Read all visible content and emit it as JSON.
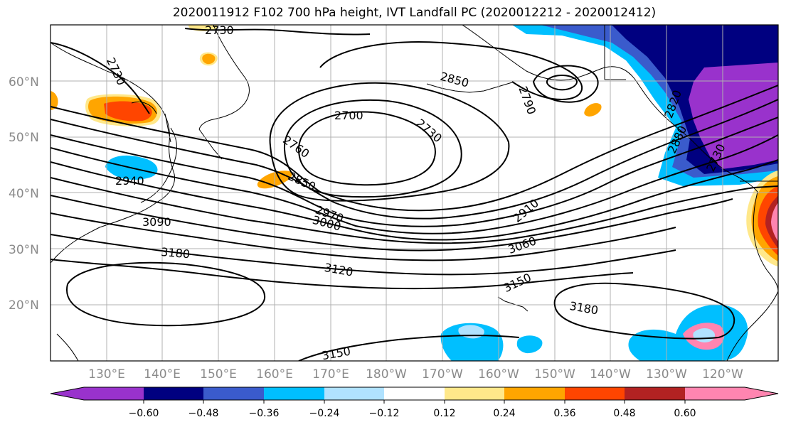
{
  "title": "2020011912 F102 700 hPa height, IVT Landfall PC (2020012212 - 2020012412)",
  "map": {
    "lat_ticks": [
      "60°N",
      "50°N",
      "40°N",
      "30°N",
      "20°N"
    ],
    "lon_ticks": [
      "130°E",
      "140°E",
      "150°E",
      "160°E",
      "170°E",
      "180°W",
      "170°W",
      "160°W",
      "150°W",
      "140°W",
      "130°W",
      "120°W"
    ],
    "contour_labels": [
      "2730",
      "2730",
      "2850",
      "2700",
      "2730",
      "2760",
      "2850",
      "2940",
      "2910",
      "2970",
      "3000",
      "3090",
      "3060",
      "3180",
      "3120",
      "3150",
      "3180",
      "3150",
      "2790",
      "2880",
      "2820",
      "2730"
    ],
    "colors": {
      "contour": "#000000",
      "grid": "#b0b0b0"
    }
  },
  "colorbar": {
    "tick_labels": [
      "−0.60",
      "−0.48",
      "−0.36",
      "−0.24",
      "−0.12",
      "0.12",
      "0.24",
      "0.36",
      "0.48",
      "0.60"
    ],
    "colors": [
      "#9932cc",
      "#000080",
      "#3a5bcc",
      "#00bfff",
      "#b0e2ff",
      "#ffffff",
      "#ffe88a",
      "#ffa500",
      "#ff4500",
      "#b22222",
      "#ff85b0"
    ]
  }
}
